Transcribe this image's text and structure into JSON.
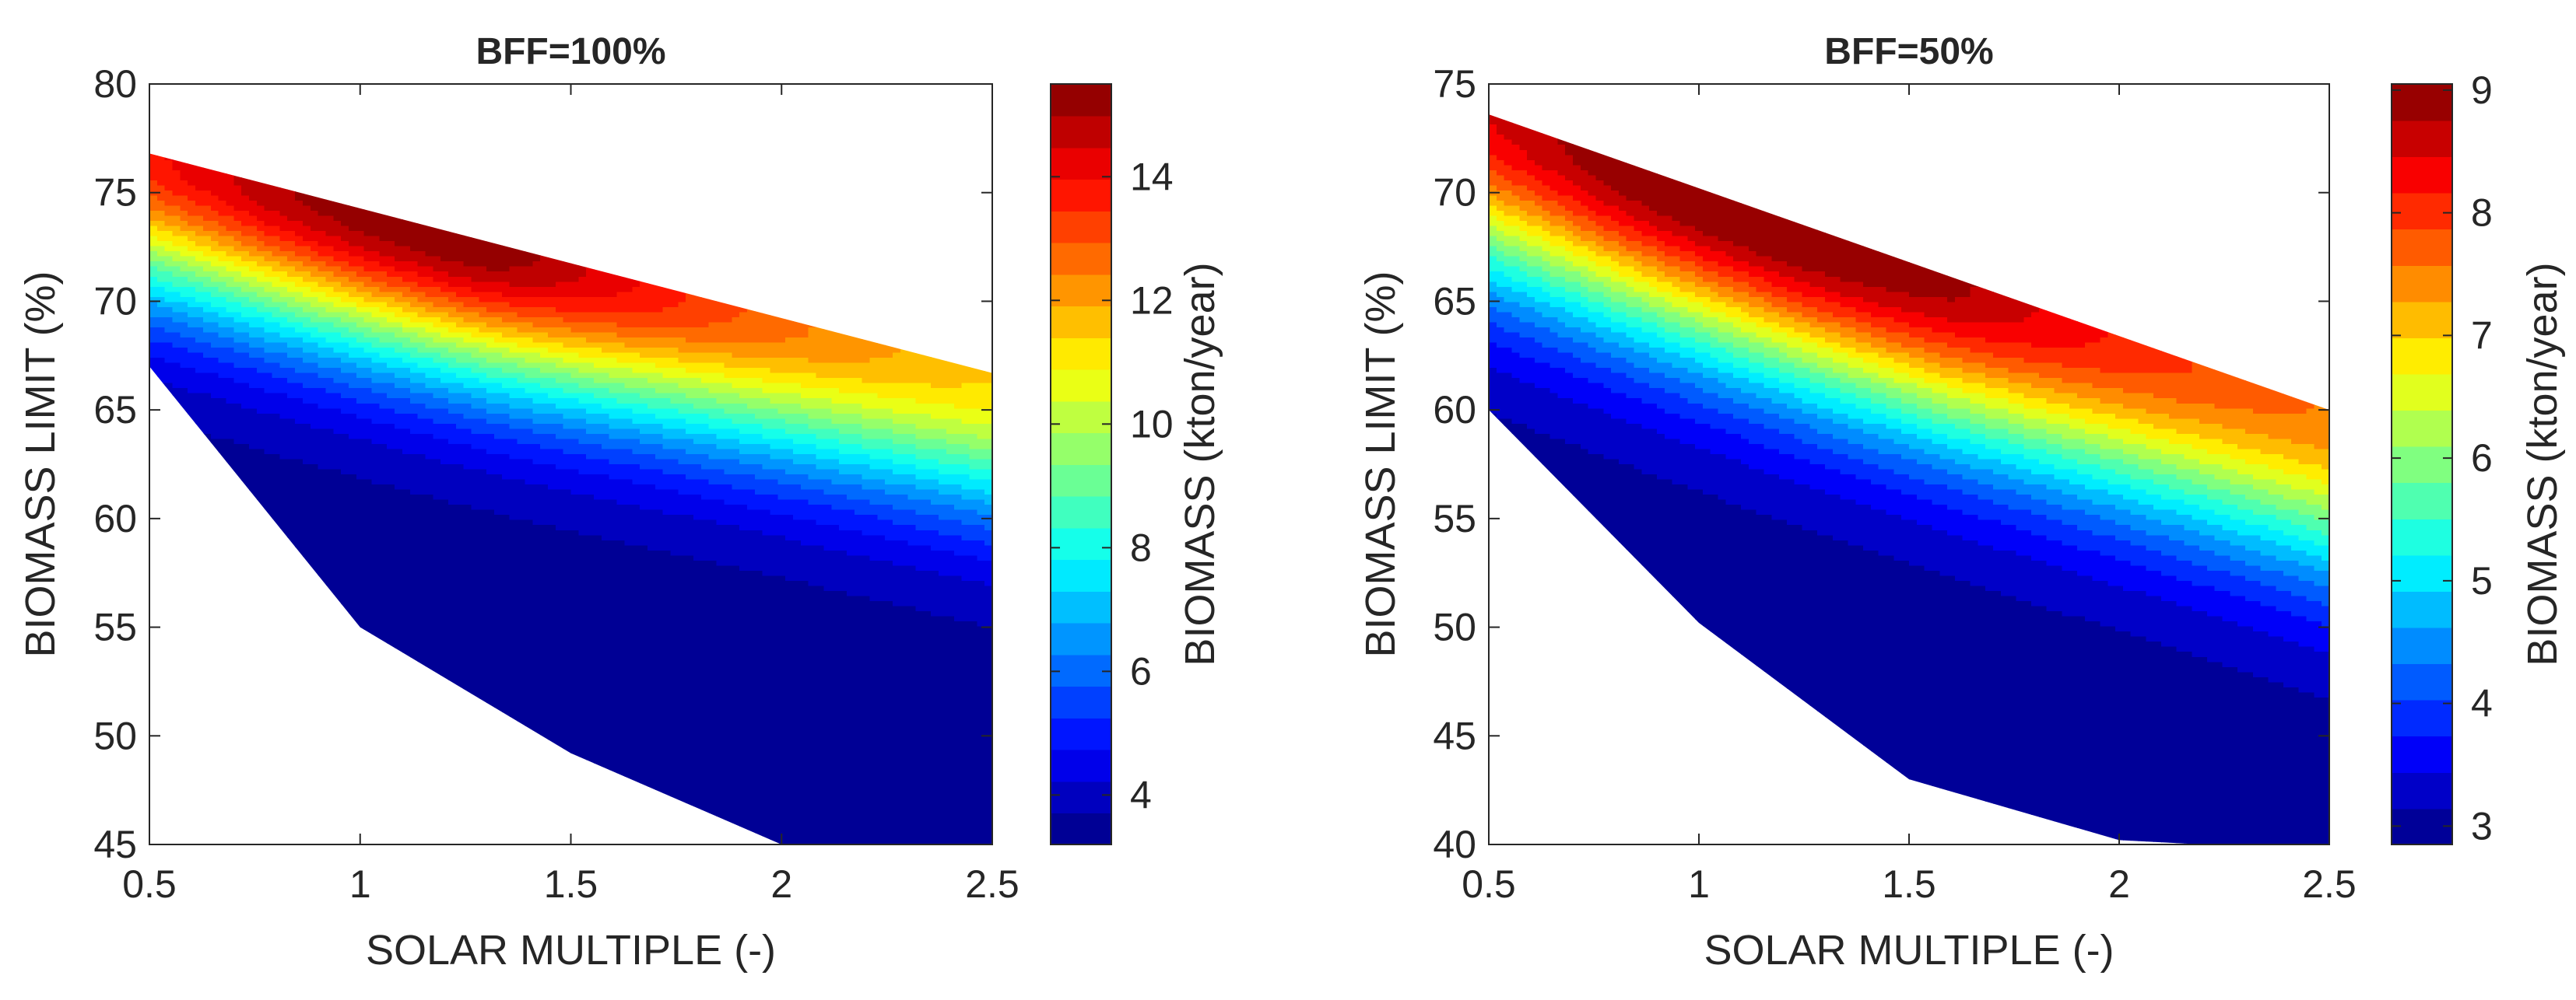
{
  "chart_data": [
    {
      "type": "contour",
      "title": "BFF=100%",
      "xlabel": "SOLAR MULTIPLE (-)",
      "ylabel": "BIOMASS LIMIT (%)",
      "colorbar_label": "BIOMASS (kton/year)",
      "xlim": [
        0.5,
        2.5
      ],
      "ylim": [
        45,
        80
      ],
      "xticks": [
        0.5,
        1,
        1.5,
        2,
        2.5
      ],
      "xtick_labels": [
        "0.5",
        "1",
        "1.5",
        "2",
        "2.5"
      ],
      "yticks": [
        45,
        50,
        55,
        60,
        65,
        70,
        75,
        80
      ],
      "ytick_labels": [
        "45",
        "50",
        "55",
        "60",
        "65",
        "70",
        "75",
        "80"
      ],
      "clim": [
        3.2,
        15.5
      ],
      "cticks": [
        4,
        6,
        8,
        10,
        12,
        14
      ],
      "ctick_labels": [
        "4",
        "6",
        "8",
        "10",
        "12",
        "14"
      ],
      "domain_upper": {
        "x": [
          0.5,
          2.5
        ],
        "y": [
          76.8,
          66.7
        ]
      },
      "domain_lower": {
        "x": [
          0.5,
          1,
          1.5,
          2,
          2.5
        ],
        "y": [
          67,
          55,
          49.2,
          45,
          45
        ]
      },
      "field_description": "Biomass consumption rises toward the upper-left edge: about 3.5 kton/year at the lower boundary, about 9.5 near 65% limit, peaking near 15.5 around SM 1.0-1.4 at 72-75%."
    },
    {
      "type": "contour",
      "title": "BFF=50%",
      "xlabel": "SOLAR MULTIPLE (-)",
      "ylabel": "BIOMASS LIMIT (%)",
      "colorbar_label": "BIOMASS (kton/year)",
      "xlim": [
        0.5,
        2.5
      ],
      "ylim": [
        40,
        75
      ],
      "xticks": [
        0.5,
        1,
        1.5,
        2,
        2.5
      ],
      "xtick_labels": [
        "0.5",
        "1",
        "1.5",
        "2",
        "2.5"
      ],
      "yticks": [
        40,
        45,
        50,
        55,
        60,
        65,
        70,
        75
      ],
      "ytick_labels": [
        "40",
        "45",
        "50",
        "55",
        "60",
        "65",
        "70",
        "75"
      ],
      "clim": [
        2.85,
        9.05
      ],
      "cticks": [
        3,
        4,
        5,
        6,
        7,
        8,
        9
      ],
      "ctick_labels": [
        "3",
        "4",
        "5",
        "6",
        "7",
        "8",
        "9"
      ],
      "domain_upper": {
        "x": [
          0.5,
          2.5
        ],
        "y": [
          73.6,
          60
        ]
      },
      "domain_lower": {
        "x": [
          0.5,
          1,
          1.5,
          2,
          2.2,
          2.5
        ],
        "y": [
          60,
          50.2,
          43,
          40.2,
          40,
          40
        ]
      },
      "field_description": "Biomass rises toward the upper-left edge: about 3 kton/year at the lower boundary, 6 near 58-60% limit, peaking above 9 around SM 0.9-1.4 at 67-71%."
    }
  ]
}
